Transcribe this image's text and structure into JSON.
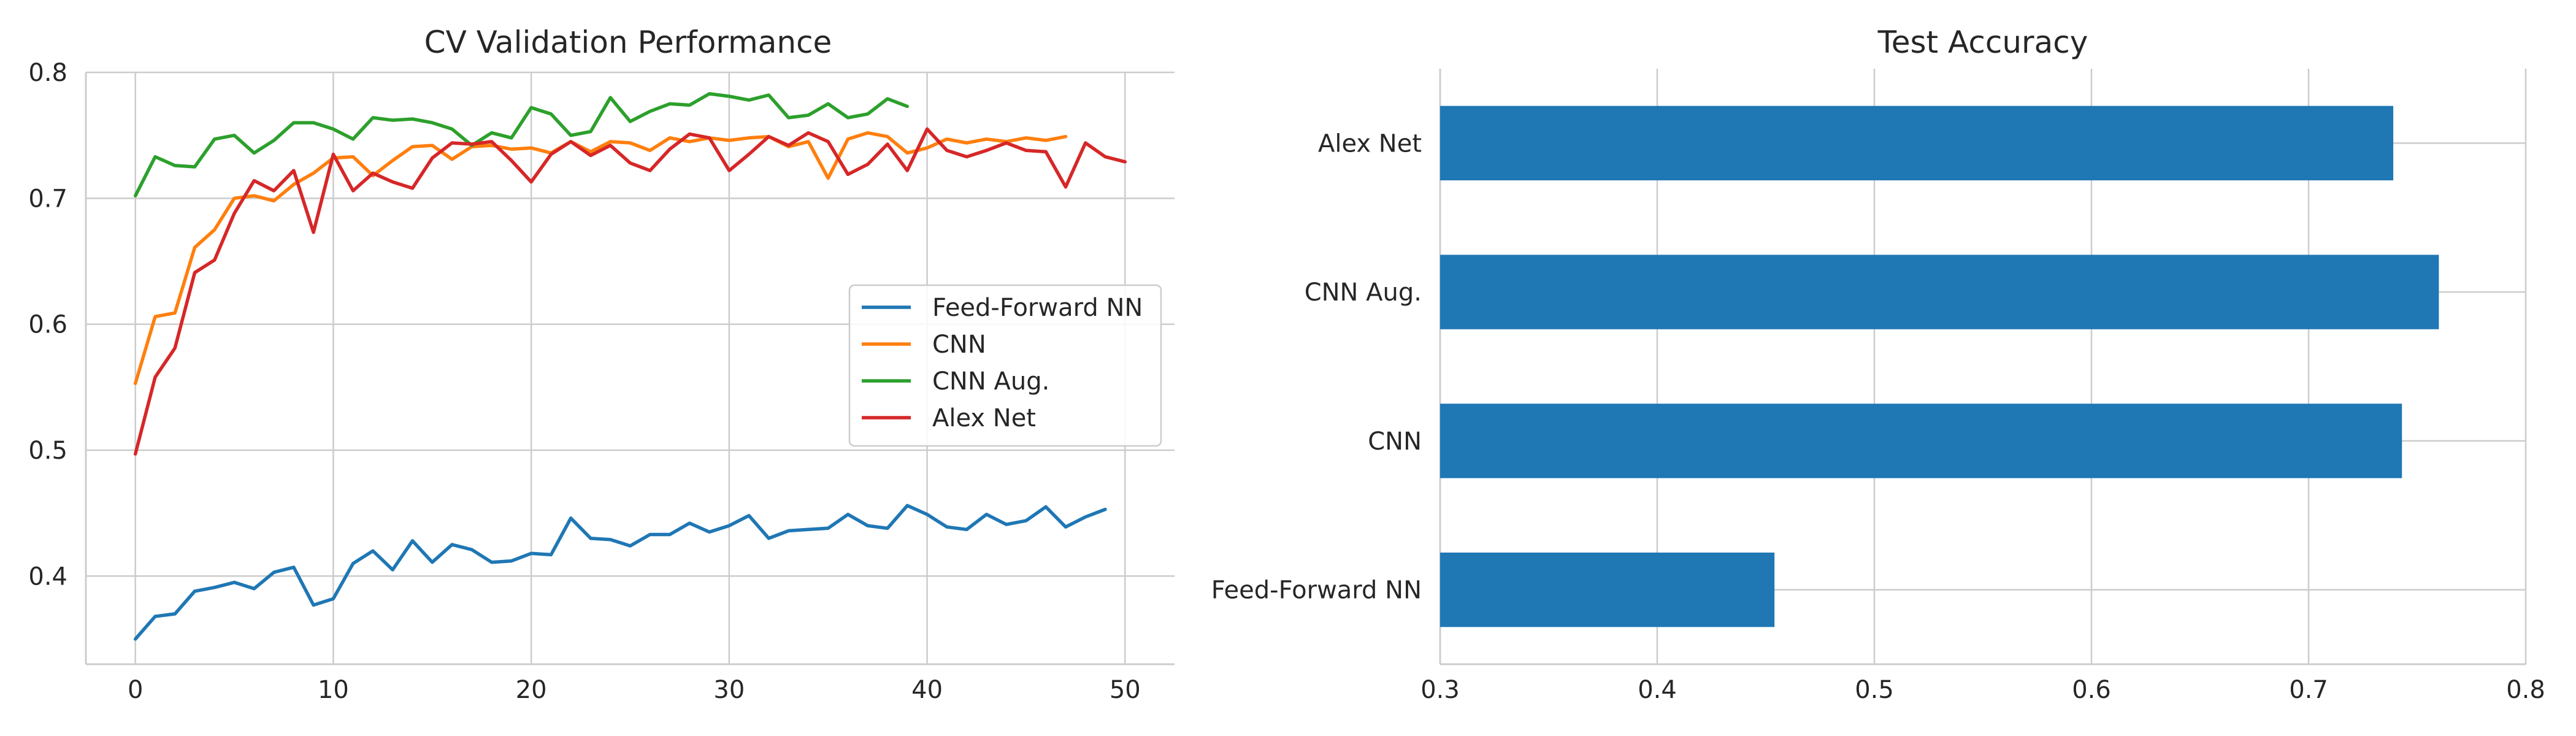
{
  "chart_data": [
    {
      "type": "line",
      "title": "CV Validation Performance",
      "xlabel": "",
      "ylabel": "",
      "xlim": [
        -2.5,
        52.5
      ],
      "ylim": [
        0.33,
        0.8
      ],
      "xticks": [
        0,
        10,
        20,
        30,
        40,
        50
      ],
      "yticks": [
        0.4,
        0.5,
        0.6,
        0.7,
        0.8
      ],
      "tick_labels_x": [
        "0",
        "10",
        "20",
        "30",
        "40",
        "50"
      ],
      "tick_labels_y": [
        "0.4",
        "0.5",
        "0.6",
        "0.7",
        "0.8"
      ],
      "grid": true,
      "legend": "center-right",
      "series": [
        {
          "name": "Feed-Forward NN",
          "color": "#1f77b4",
          "x_start": 0,
          "values": [
            0.35,
            0.368,
            0.37,
            0.388,
            0.391,
            0.395,
            0.39,
            0.403,
            0.407,
            0.377,
            0.382,
            0.41,
            0.42,
            0.405,
            0.428,
            0.411,
            0.425,
            0.421,
            0.411,
            0.412,
            0.418,
            0.417,
            0.446,
            0.43,
            0.429,
            0.424,
            0.433,
            0.433,
            0.442,
            0.435,
            0.44,
            0.448,
            0.43,
            0.436,
            0.437,
            0.438,
            0.449,
            0.44,
            0.438,
            0.456,
            0.449,
            0.439,
            0.437,
            0.449,
            0.441,
            0.444,
            0.455,
            0.439,
            0.447,
            0.453
          ]
        },
        {
          "name": "CNN",
          "color": "#ff7f0e",
          "x_start": 0,
          "values": [
            0.553,
            0.606,
            0.609,
            0.661,
            0.675,
            0.7,
            0.702,
            0.698,
            0.711,
            0.72,
            0.732,
            0.733,
            0.718,
            0.73,
            0.741,
            0.742,
            0.731,
            0.741,
            0.742,
            0.739,
            0.74,
            0.736,
            0.745,
            0.737,
            0.745,
            0.744,
            0.738,
            0.748,
            0.745,
            0.748,
            0.746,
            0.748,
            0.749,
            0.741,
            0.745,
            0.716,
            0.747,
            0.752,
            0.749,
            0.736,
            0.74,
            0.747,
            0.744,
            0.747,
            0.745,
            0.748,
            0.746,
            0.749
          ]
        },
        {
          "name": "CNN Aug.",
          "color": "#2ca02c",
          "x_start": 0,
          "values": [
            0.702,
            0.733,
            0.726,
            0.725,
            0.747,
            0.75,
            0.736,
            0.746,
            0.76,
            0.76,
            0.755,
            0.747,
            0.764,
            0.762,
            0.763,
            0.76,
            0.755,
            0.742,
            0.752,
            0.748,
            0.772,
            0.767,
            0.75,
            0.753,
            0.78,
            0.761,
            0.769,
            0.775,
            0.774,
            0.783,
            0.781,
            0.778,
            0.782,
            0.764,
            0.766,
            0.775,
            0.764,
            0.767,
            0.779,
            0.773
          ]
        },
        {
          "name": "Alex Net",
          "color": "#d62728",
          "x_start": 0,
          "values": [
            0.497,
            0.558,
            0.581,
            0.641,
            0.651,
            0.688,
            0.714,
            0.706,
            0.722,
            0.673,
            0.735,
            0.706,
            0.72,
            0.713,
            0.708,
            0.732,
            0.744,
            0.743,
            0.745,
            0.73,
            0.713,
            0.735,
            0.745,
            0.734,
            0.742,
            0.728,
            0.722,
            0.739,
            0.751,
            0.748,
            0.722,
            0.735,
            0.749,
            0.742,
            0.752,
            0.745,
            0.719,
            0.727,
            0.743,
            0.722,
            0.755,
            0.738,
            0.733,
            0.738,
            0.744,
            0.738,
            0.737,
            0.709,
            0.744,
            0.733,
            0.729
          ]
        }
      ]
    },
    {
      "type": "bar",
      "orientation": "horizontal",
      "title": "Test Accuracy",
      "xlabel": "",
      "ylabel": "",
      "xlim": [
        0.3,
        0.8
      ],
      "xticks": [
        0.3,
        0.4,
        0.5,
        0.6,
        0.7,
        0.8
      ],
      "tick_labels_x": [
        "0.3",
        "0.4",
        "0.5",
        "0.6",
        "0.7",
        "0.8"
      ],
      "grid": true,
      "color": "#1f77b4",
      "categories": [
        "Alex Net",
        "CNN Aug.",
        "CNN",
        "Feed-Forward NN"
      ],
      "values": [
        0.739,
        0.76,
        0.743,
        0.454
      ]
    }
  ]
}
